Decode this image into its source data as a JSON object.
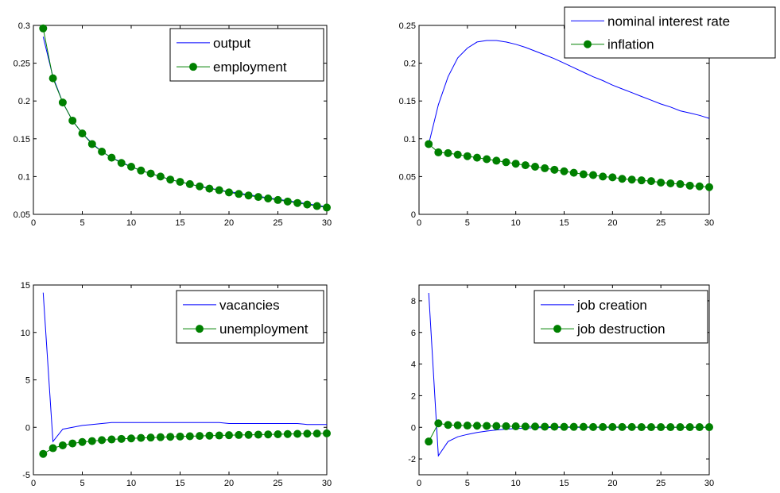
{
  "chart_data": [
    {
      "type": "line",
      "x": [
        1,
        2,
        3,
        4,
        5,
        6,
        7,
        8,
        9,
        10,
        11,
        12,
        13,
        14,
        15,
        16,
        17,
        18,
        19,
        20,
        21,
        22,
        23,
        24,
        25,
        26,
        27,
        28,
        29,
        30
      ],
      "series": [
        {
          "name": "output",
          "color": "#0000ff",
          "marker": "none",
          "values": [
            0.285,
            0.232,
            0.198,
            0.174,
            0.157,
            0.144,
            0.133,
            0.125,
            0.119,
            0.113,
            0.108,
            0.104,
            0.1,
            0.096,
            0.093,
            0.09,
            0.087,
            0.085,
            0.082,
            0.08,
            0.078,
            0.076,
            0.074,
            0.072,
            0.07,
            0.068,
            0.066,
            0.064,
            0.062,
            0.06
          ]
        },
        {
          "name": "employment",
          "color": "#008000",
          "marker": "circle",
          "values": [
            0.296,
            0.23,
            0.198,
            0.174,
            0.157,
            0.143,
            0.133,
            0.125,
            0.118,
            0.113,
            0.108,
            0.104,
            0.1,
            0.096,
            0.093,
            0.09,
            0.087,
            0.084,
            0.082,
            0.079,
            0.077,
            0.075,
            0.073,
            0.071,
            0.069,
            0.067,
            0.065,
            0.063,
            0.061,
            0.059
          ]
        }
      ],
      "xlim": [
        0,
        30
      ],
      "ylim": [
        0.05,
        0.3
      ],
      "xticks": [
        0,
        5,
        10,
        15,
        20,
        25,
        30
      ],
      "xtick_labels": [
        "0",
        "5",
        "10",
        "15",
        "20",
        "25",
        "30"
      ],
      "yticks": [
        0.05,
        0.1,
        0.15,
        0.2,
        0.25,
        0.3
      ],
      "ytick_labels": [
        "0.05",
        "0.1",
        "0.15",
        "0.2",
        "0.25",
        "0.3"
      ],
      "legend_position": "top-right",
      "grid": false
    },
    {
      "type": "line",
      "x": [
        1,
        2,
        3,
        4,
        5,
        6,
        7,
        8,
        9,
        10,
        11,
        12,
        13,
        14,
        15,
        16,
        17,
        18,
        19,
        20,
        21,
        22,
        23,
        24,
        25,
        26,
        27,
        28,
        29,
        30
      ],
      "series": [
        {
          "name": "nominal interest rate",
          "color": "#0000ff",
          "marker": "none",
          "values": [
            0.093,
            0.145,
            0.182,
            0.207,
            0.22,
            0.228,
            0.23,
            0.23,
            0.228,
            0.225,
            0.221,
            0.216,
            0.211,
            0.206,
            0.2,
            0.194,
            0.188,
            0.182,
            0.177,
            0.171,
            0.166,
            0.161,
            0.156,
            0.151,
            0.146,
            0.142,
            0.137,
            0.134,
            0.131,
            0.127
          ]
        },
        {
          "name": "inflation",
          "color": "#008000",
          "marker": "circle",
          "values": [
            0.093,
            0.082,
            0.081,
            0.079,
            0.077,
            0.075,
            0.073,
            0.071,
            0.069,
            0.067,
            0.065,
            0.063,
            0.061,
            0.059,
            0.057,
            0.055,
            0.053,
            0.052,
            0.05,
            0.049,
            0.047,
            0.046,
            0.045,
            0.044,
            0.042,
            0.041,
            0.04,
            0.038,
            0.037,
            0.036
          ]
        }
      ],
      "xlim": [
        0,
        30
      ],
      "ylim": [
        0,
        0.25
      ],
      "xticks": [
        0,
        5,
        10,
        15,
        20,
        25,
        30
      ],
      "xtick_labels": [
        "0",
        "5",
        "10",
        "15",
        "20",
        "25",
        "30"
      ],
      "yticks": [
        0,
        0.05,
        0.1,
        0.15,
        0.2,
        0.25
      ],
      "ytick_labels": [
        "0",
        "0.05",
        "0.1",
        "0.15",
        "0.2",
        "0.25"
      ],
      "legend_position": "top-right",
      "grid": false
    },
    {
      "type": "line",
      "x": [
        1,
        2,
        3,
        4,
        5,
        6,
        7,
        8,
        9,
        10,
        11,
        12,
        13,
        14,
        15,
        16,
        17,
        18,
        19,
        20,
        21,
        22,
        23,
        24,
        25,
        26,
        27,
        28,
        29,
        30
      ],
      "series": [
        {
          "name": "vacancies",
          "color": "#0000ff",
          "marker": "none",
          "values": [
            14.2,
            -1.5,
            -0.2,
            0.0,
            0.2,
            0.3,
            0.4,
            0.5,
            0.5,
            0.5,
            0.5,
            0.5,
            0.5,
            0.5,
            0.5,
            0.5,
            0.5,
            0.5,
            0.5,
            0.4,
            0.4,
            0.4,
            0.4,
            0.4,
            0.4,
            0.4,
            0.4,
            0.3,
            0.3,
            0.3
          ]
        },
        {
          "name": "unemployment",
          "color": "#008000",
          "marker": "circle",
          "values": [
            -2.8,
            -2.2,
            -1.9,
            -1.7,
            -1.55,
            -1.45,
            -1.35,
            -1.28,
            -1.22,
            -1.17,
            -1.12,
            -1.08,
            -1.04,
            -1.0,
            -0.97,
            -0.94,
            -0.91,
            -0.88,
            -0.86,
            -0.83,
            -0.81,
            -0.79,
            -0.77,
            -0.75,
            -0.73,
            -0.71,
            -0.69,
            -0.67,
            -0.66,
            -0.64
          ]
        }
      ],
      "xlim": [
        0,
        30
      ],
      "ylim": [
        -5,
        15
      ],
      "xticks": [
        0,
        5,
        10,
        15,
        20,
        25,
        30
      ],
      "xtick_labels": [
        "0",
        "5",
        "10",
        "15",
        "20",
        "25",
        "30"
      ],
      "yticks": [
        -5,
        0,
        5,
        10,
        15
      ],
      "ytick_labels": [
        "-5",
        "0",
        "5",
        "10",
        "15"
      ],
      "legend_position": "top-right",
      "grid": false
    },
    {
      "type": "line",
      "x": [
        1,
        2,
        3,
        4,
        5,
        6,
        7,
        8,
        9,
        10,
        11,
        12,
        13,
        14,
        15,
        16,
        17,
        18,
        19,
        20,
        21,
        22,
        23,
        24,
        25,
        26,
        27,
        28,
        29,
        30
      ],
      "series": [
        {
          "name": "job creation",
          "color": "#0000ff",
          "marker": "none",
          "values": [
            8.5,
            -1.8,
            -0.9,
            -0.6,
            -0.45,
            -0.33,
            -0.24,
            -0.17,
            -0.12,
            -0.08,
            -0.05,
            -0.03,
            -0.02,
            -0.01,
            0.0,
            0.0,
            0.0,
            0.0,
            0.0,
            0.0,
            0.0,
            0.0,
            0.0,
            0.0,
            0.0,
            0.0,
            0.0,
            0.0,
            0.0,
            0.0
          ]
        },
        {
          "name": "job destruction",
          "color": "#008000",
          "marker": "circle",
          "values": [
            -0.9,
            0.25,
            0.15,
            0.13,
            0.11,
            0.1,
            0.09,
            0.08,
            0.07,
            0.06,
            0.05,
            0.05,
            0.04,
            0.04,
            0.03,
            0.03,
            0.03,
            0.02,
            0.02,
            0.02,
            0.02,
            0.02,
            0.01,
            0.01,
            0.01,
            0.01,
            0.01,
            0.01,
            0.01,
            0.01
          ]
        }
      ],
      "xlim": [
        0,
        30
      ],
      "ylim": [
        -3,
        9
      ],
      "xticks": [
        0,
        5,
        10,
        15,
        20,
        25,
        30
      ],
      "xtick_labels": [
        "0",
        "5",
        "10",
        "15",
        "20",
        "25",
        "30"
      ],
      "yticks": [
        -2,
        0,
        2,
        4,
        6,
        8
      ],
      "ytick_labels": [
        "-2",
        "0",
        "2",
        "4",
        "6",
        "8"
      ],
      "legend_position": "top-right",
      "grid": false
    }
  ]
}
